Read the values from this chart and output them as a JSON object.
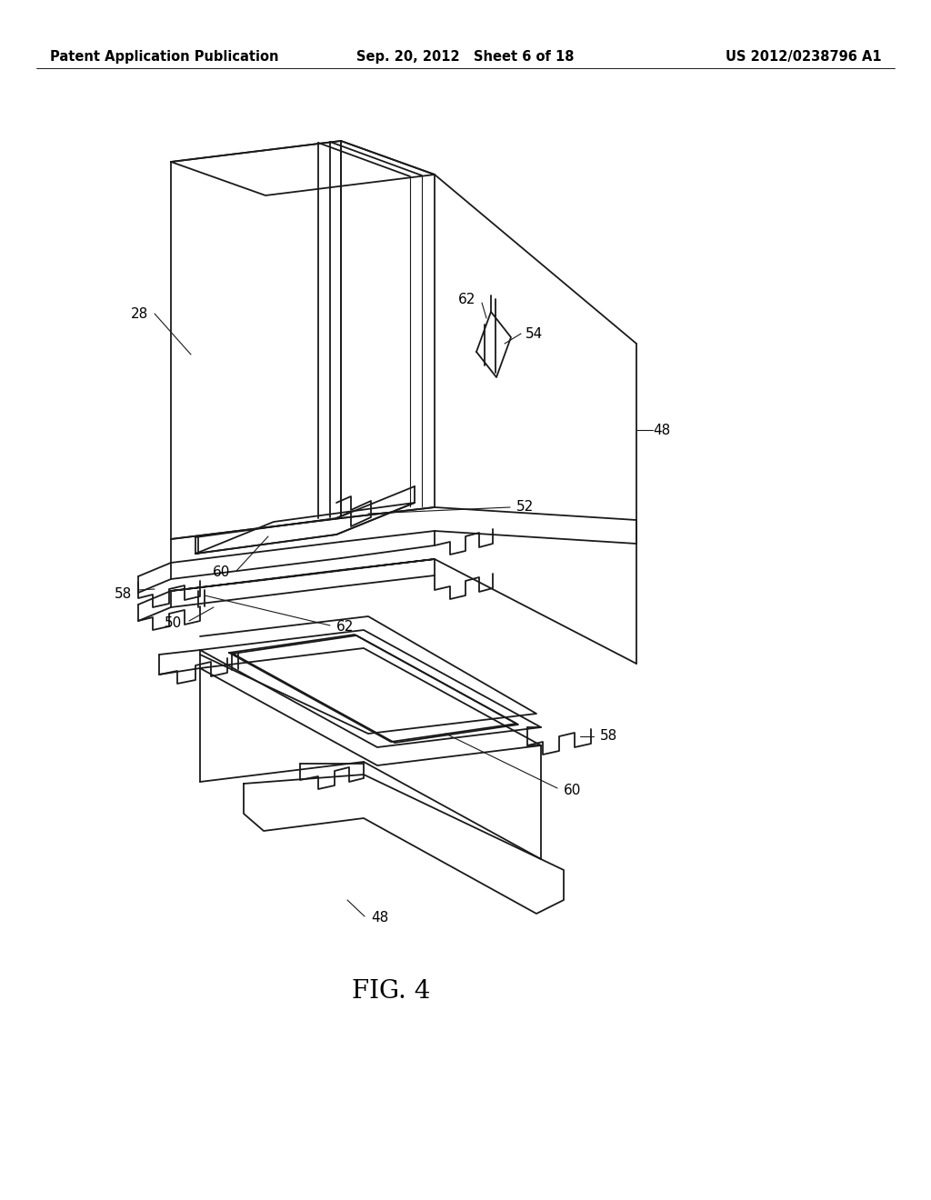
{
  "background_color": "#ffffff",
  "header_left": "Patent Application Publication",
  "header_center": "Sep. 20, 2012  Sheet 6 of 18",
  "header_right": "US 2012/0238796 A1",
  "figure_label": "FIG. 4",
  "line_color": "#1a1a1a",
  "line_width": 1.3,
  "thin_lw": 0.8,
  "header_fontsize": 10.5,
  "label_fontsize": 11,
  "fig_label_fontsize": 20
}
